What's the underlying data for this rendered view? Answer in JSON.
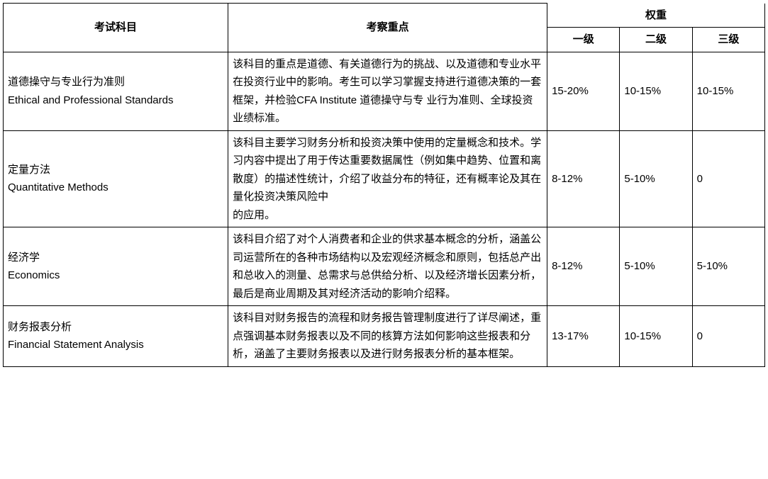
{
  "headers": {
    "subject": "考试科目",
    "focus": "考察重点",
    "weight_group": "权重",
    "level1": "一级",
    "level2": "二级",
    "level3": "三级"
  },
  "rows": [
    {
      "subject_cn": "道德操守与专业行为准则",
      "subject_en": "Ethical and Professional Standards",
      "focus": "该科目的重点是道德、有关道德行为的挑战、以及道德和专业水平在投资行业中的影响。考生可以学习掌握支持进行道德决策的一套框架，并检验CFA Institute 道德操守与专 业行为准则、全球投资业绩标准。",
      "level1": "15-20%",
      "level2": "10-15%",
      "level3": "10-15%"
    },
    {
      "subject_cn": "定量方法",
      "subject_en": "Quantitative Methods",
      "focus": "该科目主要学习财务分析和投资决策中使用的定量概念和技术。学习内容中提出了用于传达重要数据属性（例如集中趋势、位置和离散度）的描述性统计，介绍了收益分布的特征，还有概率论及其在量化投资决策风险中\n的应用。",
      "level1": "8-12%",
      "level2": "5-10%",
      "level3": "0"
    },
    {
      "subject_cn": "经济学",
      "subject_en": "Economics",
      "focus": "该科目介绍了对个人消费者和企业的供求基本概念的分析，涵盖公司运营所在的各种市场结构以及宏观经济概念和原则，包括总产出和总收入的测量、总需求与总供给分析、以及经济增长因素分析，最后是商业周期及其对经济活动的影响介绍释。",
      "level1": "8-12%",
      "level2": "5-10%",
      "level3": "5-10%"
    },
    {
      "subject_cn": "财务报表分析",
      "subject_en": "Financial Statement Analysis",
      "focus": "该科目对财务报告的流程和财务报告管理制度进行了详尽阐述，重点强调基本财务报表以及不同的核算方法如何影响这些报表和分析，涵盖了主要财务报表以及进行财务报表分析的基本框架。",
      "level1": "13-17%",
      "level2": "10-15%",
      "level3": "0"
    }
  ],
  "styling": {
    "type": "table",
    "border_color": "#000000",
    "background_color": "#ffffff",
    "text_color": "#000000",
    "header_fontweight": "bold",
    "body_fontsize": 15,
    "line_height": 1.7,
    "col_widths": {
      "subject": 310,
      "focus": 440,
      "weight": 100
    }
  }
}
